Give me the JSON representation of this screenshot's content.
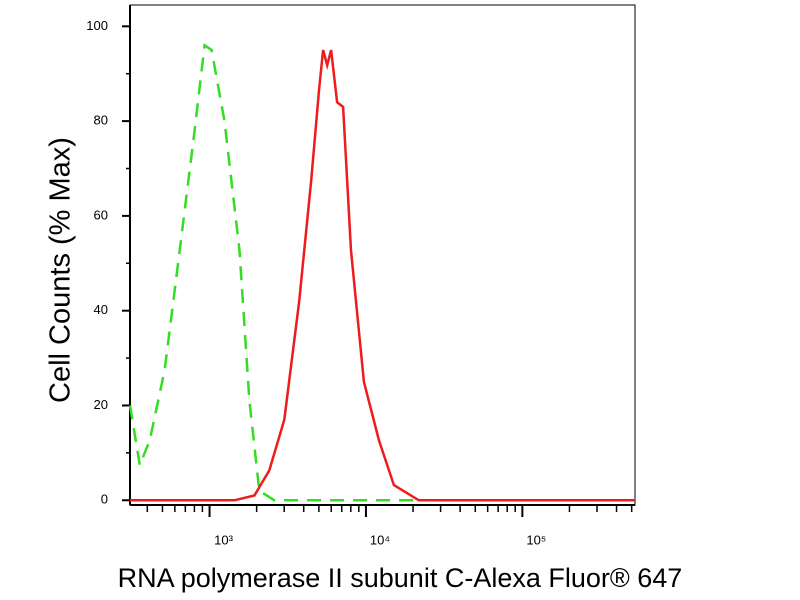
{
  "chart_data": {
    "type": "line",
    "x_label": "RNA polymerase II subunit C-Alexa Fluor® 647",
    "y_label": "Cell Counts (% Max)",
    "xscale": "log",
    "xlim": [
      310,
      525000
    ],
    "xticks": [
      {
        "value": 1000,
        "label": "10³"
      },
      {
        "value": 10000,
        "label": "10⁴"
      },
      {
        "value": 100000,
        "label": "10⁵"
      }
    ],
    "xminorticks": [
      400,
      500,
      600,
      700,
      800,
      900,
      2000,
      3000,
      4000,
      5000,
      6000,
      7000,
      8000,
      9000,
      20000,
      30000,
      40000,
      50000,
      60000,
      70000,
      80000,
      90000,
      200000,
      300000,
      400000,
      500000
    ],
    "ylim": [
      -1,
      104.5
    ],
    "yticks": [
      0,
      20,
      40,
      60,
      80,
      100
    ],
    "yminorticks": [
      10,
      30,
      50,
      70,
      90
    ],
    "series": [
      {
        "color": "#33dd22",
        "dash": "dashed",
        "x": [
          310,
          358,
          415,
          516,
          644,
          802,
          929,
          1030,
          1246,
          1553,
          1799,
          2080,
          2595,
          525000
        ],
        "values": [
          20,
          7.4,
          12.7,
          27.4,
          52.7,
          78,
          96,
          95,
          80,
          52.7,
          21,
          2,
          0,
          0
        ]
      },
      {
        "color": "#ee1c1c",
        "dash": "solid",
        "x": [
          310,
          1443,
          1935,
          2411,
          3006,
          3743,
          4466,
          5010,
          5321,
          5648,
          5988,
          6537,
          7143,
          8025,
          9705,
          12100,
          15080,
          21760,
          525000
        ],
        "values": [
          0,
          0,
          1,
          6.3,
          17,
          42,
          67.5,
          86.5,
          95,
          91.8,
          95,
          84,
          83,
          52.7,
          25,
          12.7,
          3.2,
          0,
          0
        ]
      }
    ]
  }
}
